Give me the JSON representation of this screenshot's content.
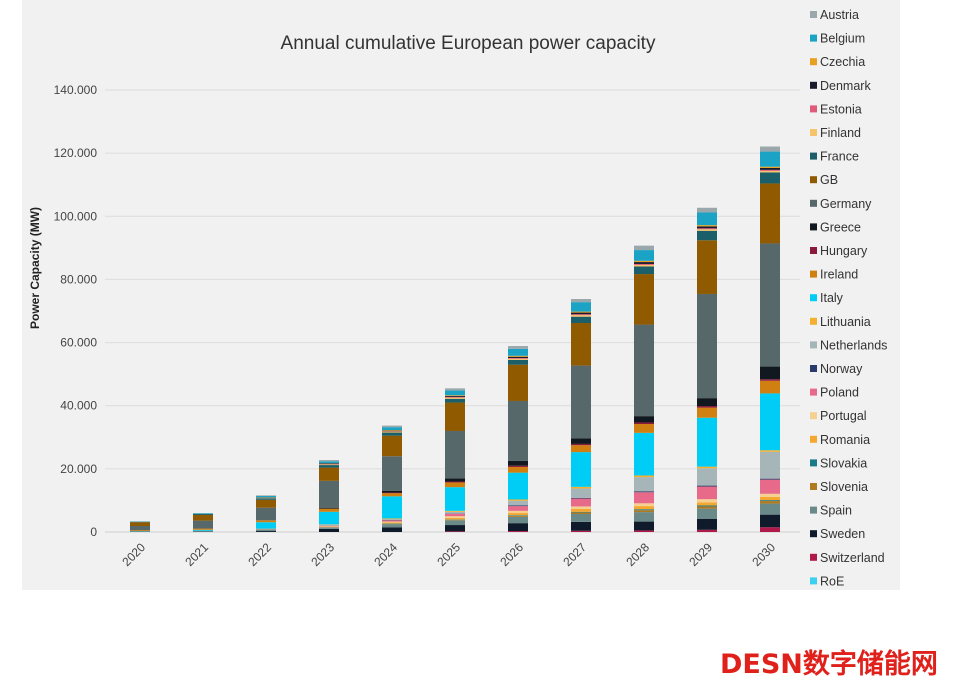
{
  "chart_data": {
    "type": "bar",
    "stacked": true,
    "title": "Annual cumulative European power capacity",
    "xlabel": "",
    "ylabel": "Power Capacity (MW)",
    "ylim": [
      0,
      140000
    ],
    "yticks": [
      0,
      20000,
      40000,
      60000,
      80000,
      100000,
      120000,
      140000
    ],
    "ytick_labels": [
      "0",
      "20.000",
      "40.000",
      "60.000",
      "80.000",
      "100.000",
      "120.000",
      "140.000"
    ],
    "grid": "horizontal",
    "legend_position": "right",
    "categories": [
      "2020",
      "2021",
      "2022",
      "2023",
      "2024",
      "2025",
      "2026",
      "2027",
      "2028",
      "2029",
      "2030"
    ],
    "series": [
      {
        "name": "Austria",
        "color": "#9aa8ab",
        "values": [
          100,
          100,
          200,
          400,
          500,
          700,
          900,
          1000,
          1400,
          1500,
          1600
        ]
      },
      {
        "name": "Belgium",
        "color": "#1aa3c4",
        "values": [
          100,
          200,
          400,
          600,
          900,
          1500,
          2200,
          3000,
          3400,
          4000,
          4800
        ]
      },
      {
        "name": "Czechia",
        "color": "#e8a020",
        "values": [
          0,
          0,
          100,
          100,
          200,
          200,
          300,
          300,
          400,
          400,
          400
        ]
      },
      {
        "name": "Denmark",
        "color": "#1a1a2e",
        "values": [
          0,
          0,
          100,
          200,
          200,
          300,
          400,
          500,
          600,
          600,
          600
        ]
      },
      {
        "name": "Estonia",
        "color": "#e05a7a",
        "values": [
          0,
          0,
          0,
          100,
          100,
          200,
          200,
          300,
          300,
          300,
          300
        ]
      },
      {
        "name": "Finland",
        "color": "#f5c36a",
        "values": [
          0,
          0,
          100,
          200,
          300,
          400,
          400,
          500,
          500,
          500,
          500
        ]
      },
      {
        "name": "France",
        "color": "#1a5f6a",
        "values": [
          100,
          300,
          500,
          800,
          1000,
          1200,
          1500,
          2000,
          2400,
          3000,
          3500
        ]
      },
      {
        "name": "GB",
        "color": "#8f5a00",
        "values": [
          1200,
          1800,
          2500,
          4200,
          6500,
          9000,
          11500,
          13500,
          16000,
          17000,
          19000
        ]
      },
      {
        "name": "Germany",
        "color": "#56686a",
        "values": [
          1300,
          2500,
          4000,
          8500,
          11000,
          15000,
          19000,
          23000,
          29000,
          33000,
          39000
        ]
      },
      {
        "name": "Greece",
        "color": "#111820",
        "values": [
          0,
          0,
          0,
          300,
          500,
          1000,
          1500,
          1800,
          2000,
          2500,
          4000
        ]
      },
      {
        "name": "Hungary",
        "color": "#8a1a3a",
        "values": [
          0,
          0,
          0,
          0,
          200,
          300,
          400,
          400,
          500,
          500,
          500
        ]
      },
      {
        "name": "Ireland",
        "color": "#d08010",
        "values": [
          300,
          400,
          600,
          1000,
          1000,
          1500,
          1800,
          2200,
          2800,
          3200,
          4000
        ]
      },
      {
        "name": "Italy",
        "color": "#00cdf5",
        "values": [
          100,
          300,
          2000,
          4000,
          7000,
          7500,
          8500,
          11000,
          13500,
          15500,
          18000
        ]
      },
      {
        "name": "Lithuania",
        "color": "#f5b030",
        "values": [
          0,
          0,
          0,
          100,
          200,
          300,
          400,
          500,
          500,
          500,
          500
        ]
      },
      {
        "name": "Netherlands",
        "color": "#a5b5b8",
        "values": [
          0,
          0,
          200,
          300,
          300,
          500,
          1500,
          3000,
          4500,
          5500,
          8500
        ]
      },
      {
        "name": "Norway",
        "color": "#2a3a6a",
        "values": [
          0,
          0,
          0,
          0,
          100,
          100,
          200,
          200,
          300,
          300,
          300
        ]
      },
      {
        "name": "Poland",
        "color": "#e86a8a",
        "values": [
          0,
          0,
          0,
          200,
          400,
          800,
          1500,
          2500,
          3500,
          4000,
          4500
        ]
      },
      {
        "name": "Portugal",
        "color": "#f5d090",
        "values": [
          0,
          0,
          0,
          100,
          300,
          500,
          700,
          800,
          900,
          1000,
          1000
        ]
      },
      {
        "name": "Romania",
        "color": "#f5a830",
        "values": [
          0,
          0,
          100,
          200,
          300,
          500,
          700,
          900,
          1000,
          1000,
          1000
        ]
      },
      {
        "name": "Slovakia",
        "color": "#1a7a8a",
        "values": [
          0,
          0,
          0,
          0,
          100,
          100,
          200,
          200,
          300,
          300,
          300
        ]
      },
      {
        "name": "Slovenia",
        "color": "#b07a20",
        "values": [
          0,
          0,
          0,
          0,
          100,
          200,
          300,
          500,
          600,
          700,
          800
        ]
      },
      {
        "name": "Spain",
        "color": "#6a8a8a",
        "values": [
          100,
          300,
          500,
          500,
          1000,
          1500,
          2000,
          2500,
          3000,
          3200,
          3500
        ]
      },
      {
        "name": "Sweden",
        "color": "#0f1a2a",
        "values": [
          100,
          100,
          300,
          1000,
          1500,
          2000,
          2500,
          2800,
          2800,
          3500,
          4000
        ]
      },
      {
        "name": "Switzerland",
        "color": "#b01a4a",
        "values": [
          0,
          0,
          0,
          0,
          0,
          200,
          300,
          400,
          500,
          700,
          1500
        ]
      },
      {
        "name": "RoE",
        "color": "#3cd0f0",
        "values": [
          0,
          0,
          0,
          0,
          0,
          0,
          0,
          0,
          0,
          0,
          0
        ]
      }
    ]
  },
  "watermark": "DESN数字储能网"
}
